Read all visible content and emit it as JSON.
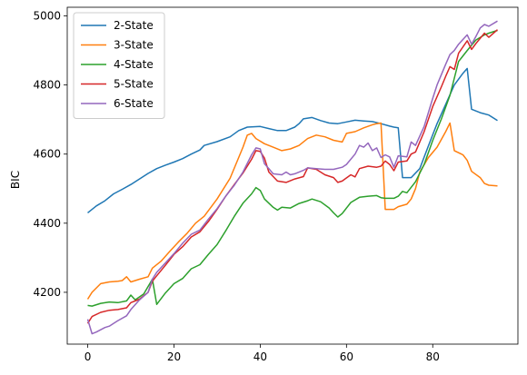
{
  "chart_data": {
    "type": "line",
    "title": "",
    "xlabel": "",
    "ylabel": "BIC",
    "xlim": [
      -4.75,
      99.75
    ],
    "ylim": [
      4050,
      5025
    ],
    "xticks": [
      0,
      20,
      40,
      60,
      80
    ],
    "yticks": [
      4200,
      4400,
      4600,
      4800,
      5000
    ],
    "grid": false,
    "legend": "top-left",
    "series": [
      {
        "name": "2-State",
        "color": "#1f77b4",
        "points": [
          [
            0,
            4430
          ],
          [
            2,
            4450
          ],
          [
            4,
            4465
          ],
          [
            6,
            4485
          ],
          [
            8,
            4498
          ],
          [
            10,
            4512
          ],
          [
            12,
            4528
          ],
          [
            14,
            4544
          ],
          [
            16,
            4558
          ],
          [
            18,
            4568
          ],
          [
            20,
            4577
          ],
          [
            22,
            4587
          ],
          [
            24,
            4600
          ],
          [
            26,
            4612
          ],
          [
            27,
            4625
          ],
          [
            30,
            4636
          ],
          [
            33,
            4650
          ],
          [
            35,
            4668
          ],
          [
            37,
            4678
          ],
          [
            40,
            4680
          ],
          [
            42,
            4674
          ],
          [
            44,
            4668
          ],
          [
            46,
            4668
          ],
          [
            48,
            4678
          ],
          [
            49,
            4688
          ],
          [
            50,
            4702
          ],
          [
            52,
            4706
          ],
          [
            54,
            4697
          ],
          [
            56,
            4690
          ],
          [
            58,
            4688
          ],
          [
            60,
            4693
          ],
          [
            62,
            4698
          ],
          [
            64,
            4696
          ],
          [
            66,
            4694
          ],
          [
            68,
            4688
          ],
          [
            70,
            4681
          ],
          [
            71,
            4678
          ],
          [
            72,
            4676
          ],
          [
            73,
            4532
          ],
          [
            75,
            4532
          ],
          [
            77,
            4558
          ],
          [
            79,
            4624
          ],
          [
            81,
            4688
          ],
          [
            83,
            4744
          ],
          [
            85,
            4800
          ],
          [
            87,
            4834
          ],
          [
            88,
            4848
          ],
          [
            89,
            4730
          ],
          [
            91,
            4720
          ],
          [
            93,
            4713
          ],
          [
            95,
            4697
          ]
        ]
      },
      {
        "name": "3-State",
        "color": "#ff7f0e",
        "points": [
          [
            0,
            4180
          ],
          [
            1,
            4200
          ],
          [
            3,
            4225
          ],
          [
            5,
            4230
          ],
          [
            7,
            4232
          ],
          [
            8,
            4234
          ],
          [
            9,
            4245
          ],
          [
            10,
            4230
          ],
          [
            12,
            4238
          ],
          [
            14,
            4245
          ],
          [
            15,
            4270
          ],
          [
            17,
            4290
          ],
          [
            19,
            4318
          ],
          [
            21,
            4345
          ],
          [
            23,
            4370
          ],
          [
            25,
            4400
          ],
          [
            27,
            4420
          ],
          [
            30,
            4470
          ],
          [
            33,
            4530
          ],
          [
            35,
            4590
          ],
          [
            36,
            4620
          ],
          [
            37,
            4655
          ],
          [
            38,
            4660
          ],
          [
            39,
            4645
          ],
          [
            41,
            4630
          ],
          [
            43,
            4620
          ],
          [
            45,
            4610
          ],
          [
            47,
            4615
          ],
          [
            49,
            4625
          ],
          [
            51,
            4645
          ],
          [
            53,
            4655
          ],
          [
            55,
            4650
          ],
          [
            57,
            4640
          ],
          [
            59,
            4635
          ],
          [
            60,
            4660
          ],
          [
            62,
            4665
          ],
          [
            64,
            4676
          ],
          [
            66,
            4685
          ],
          [
            67,
            4688
          ],
          [
            68,
            4690
          ],
          [
            69,
            4440
          ],
          [
            71,
            4440
          ],
          [
            72,
            4448
          ],
          [
            74,
            4455
          ],
          [
            75,
            4470
          ],
          [
            76,
            4500
          ],
          [
            77,
            4548
          ],
          [
            79,
            4590
          ],
          [
            81,
            4620
          ],
          [
            83,
            4665
          ],
          [
            84,
            4690
          ],
          [
            85,
            4610
          ],
          [
            87,
            4598
          ],
          [
            88,
            4582
          ],
          [
            89,
            4550
          ],
          [
            91,
            4532
          ],
          [
            92,
            4515
          ],
          [
            93,
            4510
          ],
          [
            95,
            4508
          ]
        ]
      },
      {
        "name": "4-State",
        "color": "#2ca02c",
        "points": [
          [
            0,
            4162
          ],
          [
            1,
            4160
          ],
          [
            3,
            4168
          ],
          [
            5,
            4172
          ],
          [
            7,
            4170
          ],
          [
            9,
            4175
          ],
          [
            10,
            4192
          ],
          [
            11,
            4178
          ],
          [
            13,
            4195
          ],
          [
            15,
            4238
          ],
          [
            16,
            4165
          ],
          [
            18,
            4198
          ],
          [
            20,
            4225
          ],
          [
            22,
            4240
          ],
          [
            24,
            4268
          ],
          [
            26,
            4280
          ],
          [
            28,
            4310
          ],
          [
            30,
            4338
          ],
          [
            32,
            4378
          ],
          [
            34,
            4420
          ],
          [
            36,
            4458
          ],
          [
            38,
            4485
          ],
          [
            39,
            4503
          ],
          [
            40,
            4495
          ],
          [
            41,
            4470
          ],
          [
            43,
            4446
          ],
          [
            44,
            4438
          ],
          [
            45,
            4446
          ],
          [
            47,
            4444
          ],
          [
            49,
            4457
          ],
          [
            51,
            4465
          ],
          [
            52,
            4470
          ],
          [
            54,
            4462
          ],
          [
            56,
            4444
          ],
          [
            57,
            4430
          ],
          [
            58,
            4418
          ],
          [
            59,
            4428
          ],
          [
            61,
            4460
          ],
          [
            63,
            4475
          ],
          [
            65,
            4478
          ],
          [
            67,
            4480
          ],
          [
            68,
            4474
          ],
          [
            69,
            4472
          ],
          [
            70,
            4472
          ],
          [
            71,
            4472
          ],
          [
            72,
            4478
          ],
          [
            73,
            4492
          ],
          [
            74,
            4488
          ],
          [
            76,
            4520
          ],
          [
            78,
            4570
          ],
          [
            80,
            4640
          ],
          [
            82,
            4702
          ],
          [
            84,
            4770
          ],
          [
            86,
            4868
          ],
          [
            88,
            4900
          ],
          [
            90,
            4930
          ],
          [
            92,
            4945
          ],
          [
            93,
            4950
          ],
          [
            95,
            4958
          ]
        ]
      },
      {
        "name": "5-State",
        "color": "#d62728",
        "points": [
          [
            0,
            4110
          ],
          [
            1,
            4130
          ],
          [
            3,
            4142
          ],
          [
            5,
            4148
          ],
          [
            7,
            4150
          ],
          [
            9,
            4155
          ],
          [
            10,
            4170
          ],
          [
            12,
            4180
          ],
          [
            14,
            4200
          ],
          [
            15,
            4232
          ],
          [
            16,
            4248
          ],
          [
            18,
            4278
          ],
          [
            20,
            4310
          ],
          [
            22,
            4332
          ],
          [
            24,
            4360
          ],
          [
            26,
            4375
          ],
          [
            28,
            4405
          ],
          [
            30,
            4440
          ],
          [
            32,
            4478
          ],
          [
            34,
            4512
          ],
          [
            36,
            4545
          ],
          [
            38,
            4585
          ],
          [
            39,
            4610
          ],
          [
            40,
            4608
          ],
          [
            41,
            4588
          ],
          [
            42,
            4548
          ],
          [
            44,
            4522
          ],
          [
            46,
            4518
          ],
          [
            48,
            4528
          ],
          [
            50,
            4535
          ],
          [
            51,
            4560
          ],
          [
            53,
            4556
          ],
          [
            55,
            4540
          ],
          [
            57,
            4532
          ],
          [
            58,
            4518
          ],
          [
            59,
            4522
          ],
          [
            61,
            4540
          ],
          [
            62,
            4534
          ],
          [
            63,
            4558
          ],
          [
            65,
            4565
          ],
          [
            67,
            4562
          ],
          [
            68,
            4565
          ],
          [
            69,
            4580
          ],
          [
            70,
            4570
          ],
          [
            71,
            4552
          ],
          [
            72,
            4577
          ],
          [
            74,
            4580
          ],
          [
            75,
            4600
          ],
          [
            76,
            4606
          ],
          [
            78,
            4665
          ],
          [
            80,
            4738
          ],
          [
            82,
            4795
          ],
          [
            83,
            4825
          ],
          [
            84,
            4853
          ],
          [
            85,
            4845
          ],
          [
            86,
            4892
          ],
          [
            88,
            4928
          ],
          [
            89,
            4903
          ],
          [
            90,
            4920
          ],
          [
            92,
            4950
          ],
          [
            93,
            4938
          ],
          [
            95,
            4960
          ]
        ]
      },
      {
        "name": "6-State",
        "color": "#9467bd",
        "points": [
          [
            0,
            4122
          ],
          [
            1,
            4080
          ],
          [
            2,
            4085
          ],
          [
            4,
            4098
          ],
          [
            5,
            4102
          ],
          [
            7,
            4118
          ],
          [
            9,
            4132
          ],
          [
            10,
            4150
          ],
          [
            12,
            4178
          ],
          [
            14,
            4200
          ],
          [
            15,
            4238
          ],
          [
            16,
            4258
          ],
          [
            18,
            4285
          ],
          [
            20,
            4312
          ],
          [
            22,
            4342
          ],
          [
            24,
            4368
          ],
          [
            26,
            4380
          ],
          [
            28,
            4412
          ],
          [
            30,
            4442
          ],
          [
            32,
            4478
          ],
          [
            34,
            4510
          ],
          [
            36,
            4548
          ],
          [
            38,
            4598
          ],
          [
            39,
            4618
          ],
          [
            40,
            4615
          ],
          [
            41,
            4572
          ],
          [
            42,
            4558
          ],
          [
            43,
            4543
          ],
          [
            45,
            4540
          ],
          [
            46,
            4548
          ],
          [
            47,
            4540
          ],
          [
            48,
            4543
          ],
          [
            50,
            4553
          ],
          [
            51,
            4560
          ],
          [
            53,
            4558
          ],
          [
            55,
            4556
          ],
          [
            57,
            4556
          ],
          [
            59,
            4562
          ],
          [
            60,
            4570
          ],
          [
            62,
            4600
          ],
          [
            63,
            4625
          ],
          [
            64,
            4620
          ],
          [
            65,
            4632
          ],
          [
            66,
            4610
          ],
          [
            67,
            4618
          ],
          [
            68,
            4590
          ],
          [
            69,
            4598
          ],
          [
            70,
            4592
          ],
          [
            71,
            4562
          ],
          [
            72,
            4595
          ],
          [
            74,
            4592
          ],
          [
            75,
            4635
          ],
          [
            76,
            4625
          ],
          [
            78,
            4680
          ],
          [
            80,
            4762
          ],
          [
            81,
            4800
          ],
          [
            83,
            4860
          ],
          [
            84,
            4888
          ],
          [
            85,
            4900
          ],
          [
            86,
            4918
          ],
          [
            88,
            4945
          ],
          [
            89,
            4918
          ],
          [
            90,
            4940
          ],
          [
            91,
            4965
          ],
          [
            92,
            4975
          ],
          [
            93,
            4970
          ],
          [
            95,
            4985
          ]
        ]
      }
    ]
  }
}
